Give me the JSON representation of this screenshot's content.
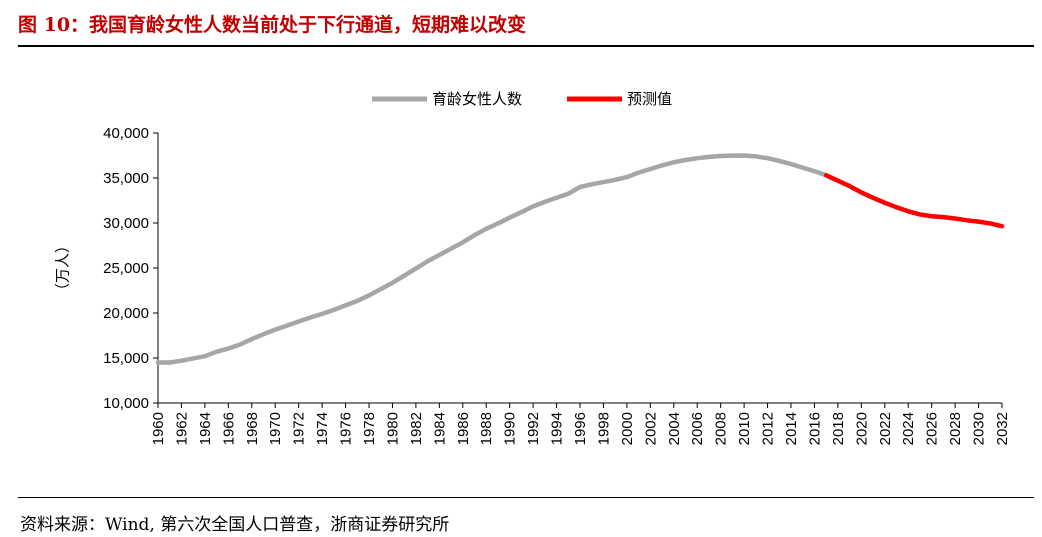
{
  "figure": {
    "title": "图 10：我国育龄女性人数当前处于下行通道，短期难以改变",
    "source": "资料来源：Wind, 第六次全国人口普查，浙商证券研究所"
  },
  "colors": {
    "title": "#c00000",
    "series_actual": "#a6a6a6",
    "series_forecast": "#ff0000"
  },
  "chart_data": {
    "type": "line",
    "ylabel": "（万人）",
    "ylim": [
      10000,
      40000
    ],
    "yticks": [
      10000,
      15000,
      20000,
      25000,
      30000,
      35000,
      40000
    ],
    "ytick_labels": [
      "10,000",
      "15,000",
      "20,000",
      "25,000",
      "30,000",
      "35,000",
      "40,000"
    ],
    "xlim": [
      1960,
      2032
    ],
    "xticks": [
      1960,
      1962,
      1964,
      1966,
      1968,
      1970,
      1972,
      1974,
      1976,
      1978,
      1980,
      1982,
      1984,
      1986,
      1988,
      1990,
      1992,
      1994,
      1996,
      1998,
      2000,
      2002,
      2004,
      2006,
      2008,
      2010,
      2012,
      2014,
      2016,
      2018,
      2020,
      2022,
      2024,
      2026,
      2028,
      2030,
      2032
    ],
    "legend_position": "top-center",
    "series": [
      {
        "name": "育龄女性人数",
        "color": "#a6a6a6",
        "x": [
          1960,
          1961,
          1962,
          1963,
          1964,
          1965,
          1966,
          1967,
          1968,
          1969,
          1970,
          1971,
          1972,
          1973,
          1974,
          1975,
          1976,
          1977,
          1978,
          1979,
          1980,
          1981,
          1982,
          1983,
          1984,
          1985,
          1986,
          1987,
          1988,
          1989,
          1990,
          1991,
          1992,
          1993,
          1994,
          1995,
          1996,
          1997,
          1998,
          1999,
          2000,
          2001,
          2002,
          2003,
          2004,
          2005,
          2006,
          2007,
          2008,
          2009,
          2010,
          2011,
          2012,
          2013,
          2014,
          2015,
          2016,
          2017
        ],
        "y": [
          14500,
          14500,
          14700,
          14950,
          15200,
          15700,
          16050,
          16500,
          17100,
          17650,
          18150,
          18600,
          19050,
          19500,
          19900,
          20350,
          20850,
          21350,
          21950,
          22650,
          23350,
          24150,
          24950,
          25750,
          26450,
          27150,
          27850,
          28650,
          29350,
          29950,
          30600,
          31200,
          31850,
          32350,
          32800,
          33250,
          34000,
          34300,
          34550,
          34800,
          35100,
          35600,
          36000,
          36400,
          36750,
          37000,
          37200,
          37350,
          37450,
          37480,
          37500,
          37400,
          37200,
          36900,
          36550,
          36150,
          35750,
          35300
        ]
      },
      {
        "name": "预测值",
        "color": "#ff0000",
        "x": [
          2017,
          2018,
          2019,
          2020,
          2021,
          2022,
          2023,
          2024,
          2025,
          2026,
          2027,
          2028,
          2029,
          2030,
          2031,
          2032
        ],
        "y": [
          35300,
          34700,
          34100,
          33400,
          32800,
          32250,
          31750,
          31300,
          30950,
          30750,
          30650,
          30500,
          30300,
          30150,
          29950,
          29650
        ]
      }
    ]
  }
}
